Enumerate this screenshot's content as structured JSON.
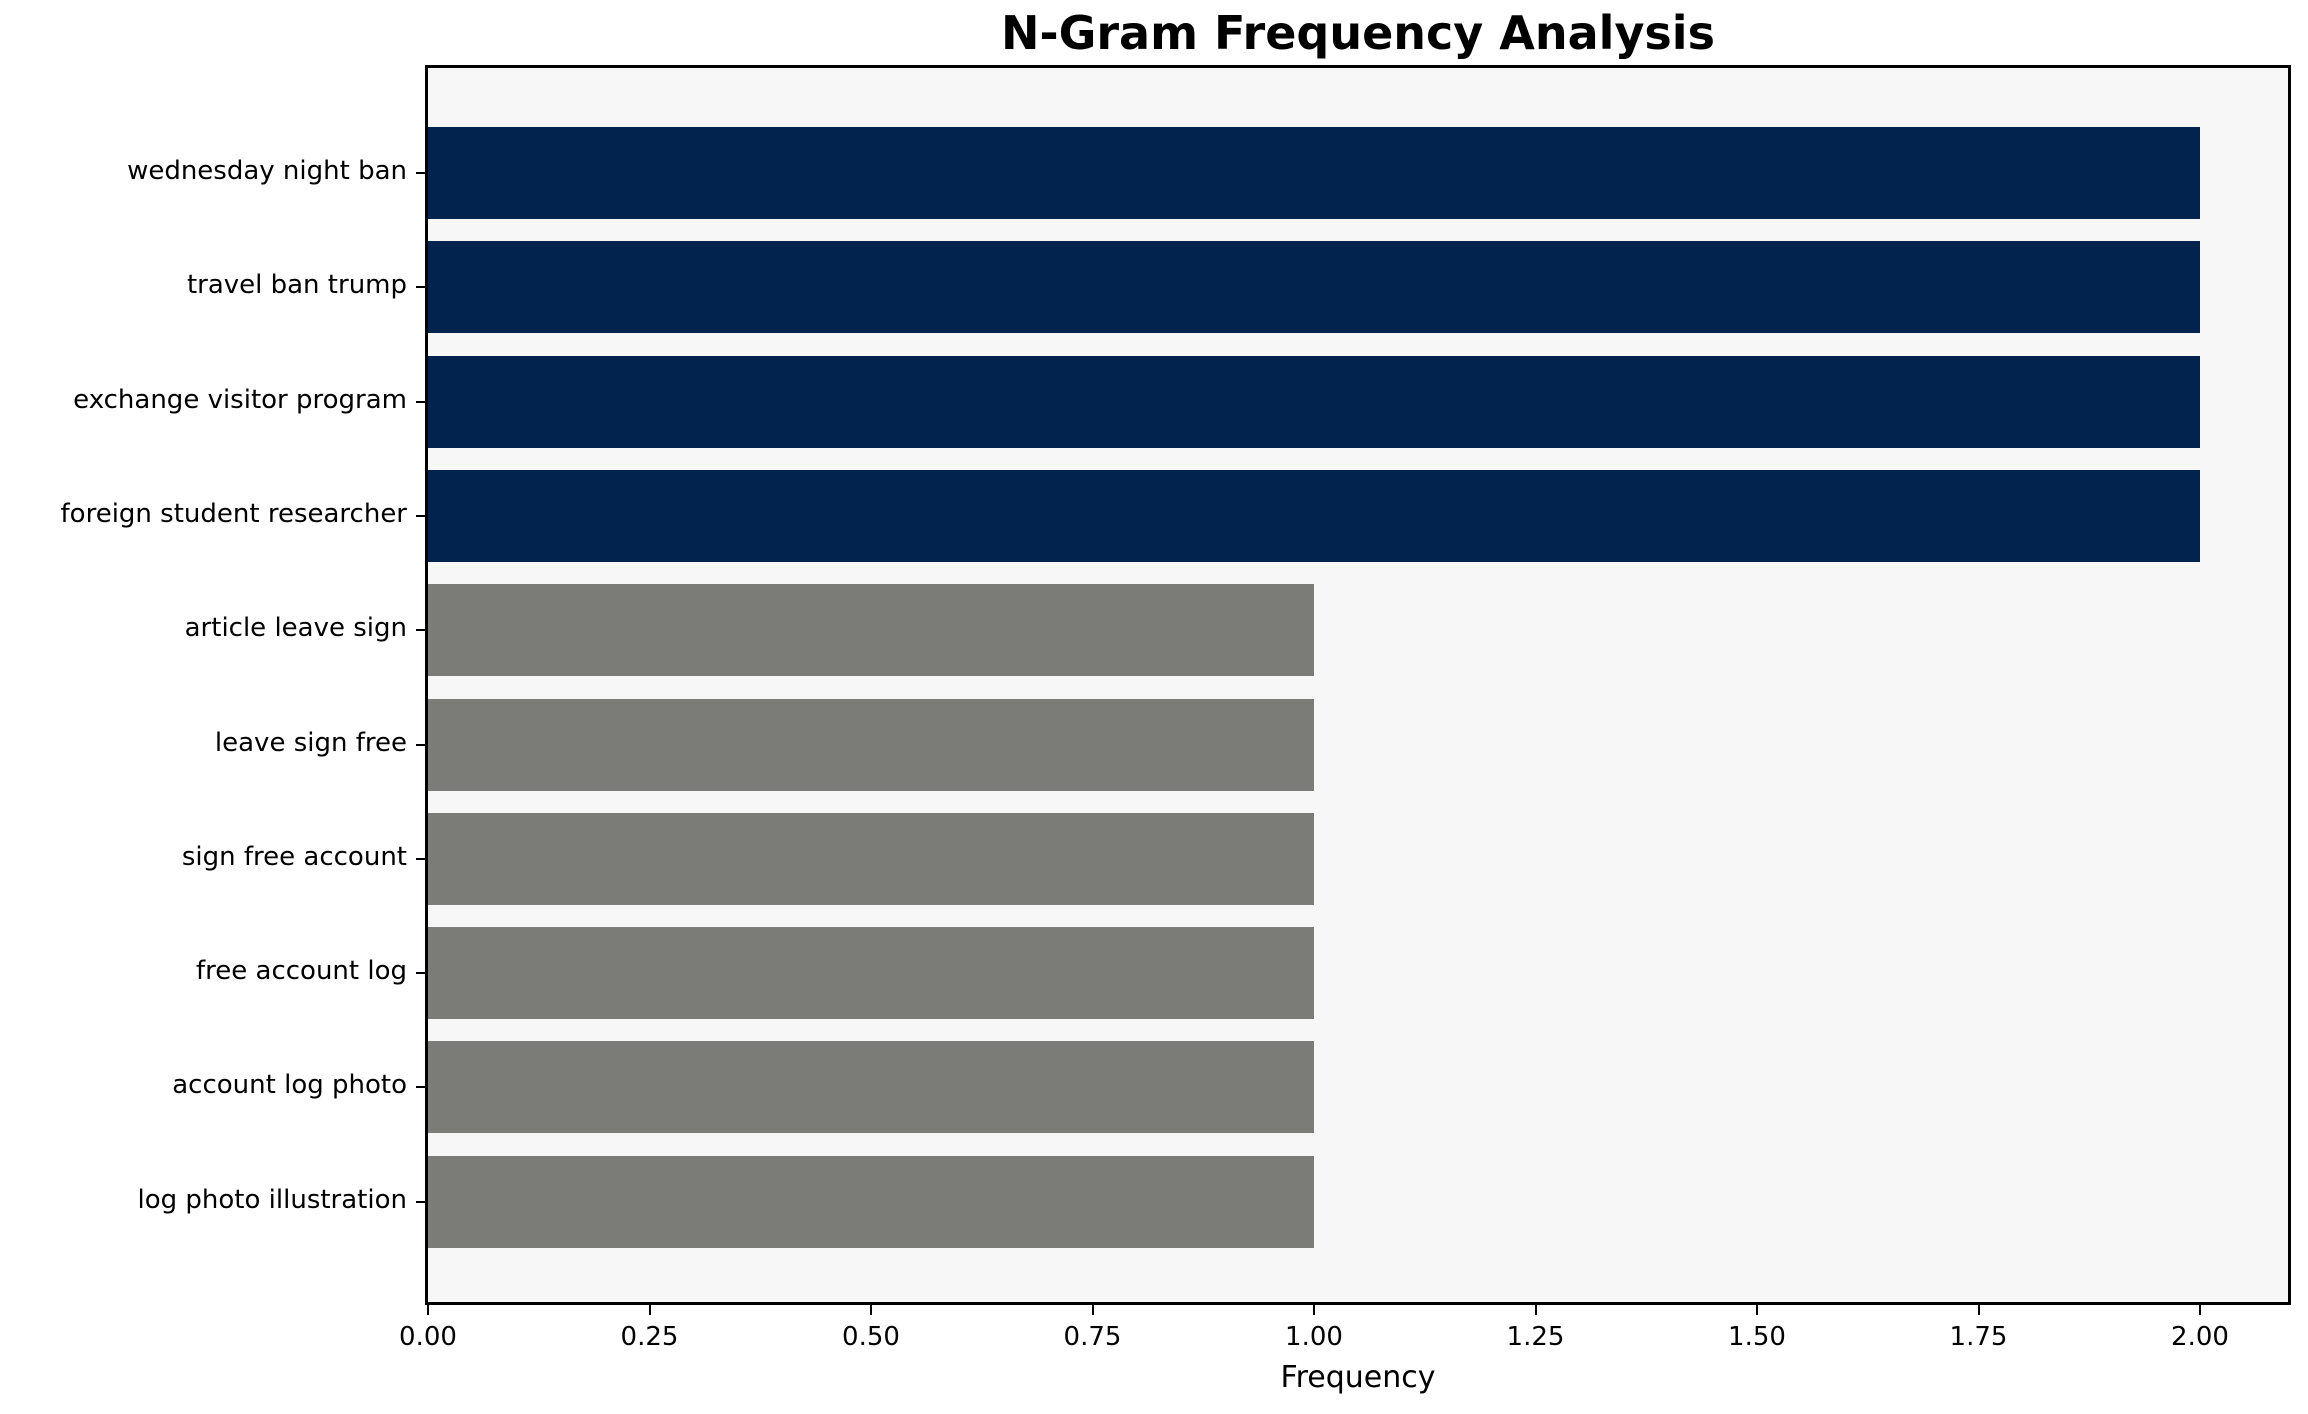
{
  "chart_data": {
    "type": "bar",
    "orientation": "horizontal",
    "title": "N-Gram Frequency Analysis",
    "xlabel": "Frequency",
    "ylabel": "",
    "categories": [
      "wednesday night ban",
      "travel ban trump",
      "exchange visitor program",
      "foreign student researcher",
      "article leave sign",
      "leave sign free",
      "sign free account",
      "free account log",
      "account log photo",
      "log photo illustration"
    ],
    "values": [
      2,
      2,
      2,
      2,
      1,
      1,
      1,
      1,
      1,
      1
    ],
    "bar_colors": [
      "#02234e",
      "#02234e",
      "#02234e",
      "#02234e",
      "#7b7b78",
      "#7b7b78",
      "#7b7b78",
      "#7b7b78",
      "#7b7b78",
      "#7b7b78"
    ],
    "x_ticks": [
      "0.00",
      "0.25",
      "0.50",
      "0.75",
      "1.00",
      "1.25",
      "1.50",
      "1.75",
      "2.00"
    ],
    "x_tick_values": [
      0,
      0.25,
      0.5,
      0.75,
      1.0,
      1.25,
      1.5,
      1.75,
      2.0
    ],
    "xlim": [
      0,
      2.1
    ],
    "grid": false,
    "legend_position": "none",
    "colors": {
      "highlight_bar": "#02234e",
      "default_bar": "#7b7b78",
      "plot_background": "#f7f7f8",
      "figure_background": "#ffffff",
      "axis_line": "#000000",
      "text": "#000000"
    }
  }
}
